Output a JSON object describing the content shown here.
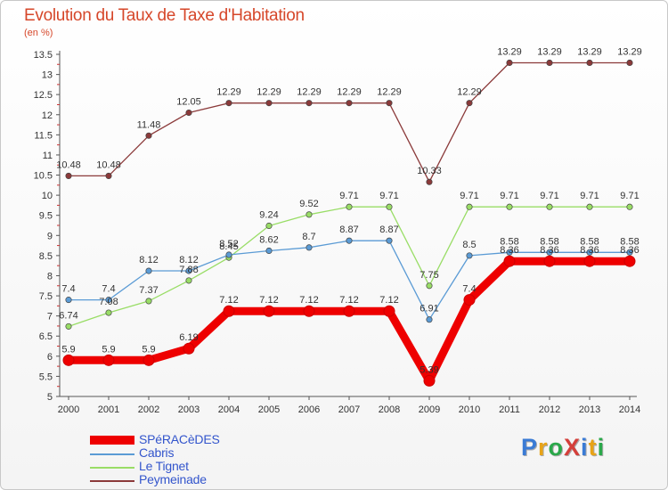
{
  "header": {
    "title": "Evolution du Taux de Taxe d'Habitation",
    "unit": "(en %)"
  },
  "logo": {
    "text": "ProXiti",
    "colors": [
      "#3a7bd5",
      "#e8a317",
      "#2aa84a",
      "#d43f3a",
      "#3a7bd5",
      "#e8a317",
      "#2aa84a"
    ]
  },
  "chart_data": {
    "type": "line",
    "x": [
      2000,
      2001,
      2002,
      2003,
      2004,
      2005,
      2006,
      2007,
      2008,
      2009,
      2010,
      2011,
      2012,
      2013,
      2014
    ],
    "ylim": [
      5,
      13.5
    ],
    "yticks": [
      5,
      5.5,
      6,
      6.5,
      7,
      7.5,
      8,
      8.5,
      9,
      9.5,
      10,
      10.5,
      11,
      11.5,
      12,
      12.5,
      13,
      13.5
    ],
    "grid": false,
    "legend": "bottom-left",
    "series": [
      {
        "name": "SPéRACèDES",
        "color": "#ee0000",
        "emphasis": true,
        "values": [
          5.9,
          5.9,
          5.9,
          6.19,
          7.12,
          7.12,
          7.12,
          7.12,
          7.12,
          5.39,
          7.4,
          8.36,
          8.36,
          8.36,
          8.36
        ],
        "labels": [
          "5.9",
          "5.9",
          "5.9",
          "6.19",
          "7.12",
          "7.12",
          "7.12",
          "7.12",
          "7.12",
          "5.39",
          "7.4",
          "8.36",
          "8.36",
          "8.36",
          "8.36"
        ]
      },
      {
        "name": "Cabris",
        "color": "#5b9bd5",
        "emphasis": false,
        "values": [
          7.4,
          7.4,
          8.12,
          8.12,
          8.52,
          8.62,
          8.7,
          8.87,
          8.87,
          6.91,
          8.5,
          8.58,
          8.58,
          8.58,
          8.58
        ],
        "labels": [
          "7.4",
          "7.4",
          "8.12",
          "8.12",
          "8.52",
          "8.62",
          "8.7",
          "8.87",
          "8.87",
          "6.91",
          "8.5",
          "8.58",
          "8.58",
          "8.58",
          "8.58"
        ]
      },
      {
        "name": "Le Tignet",
        "color": "#99dd66",
        "emphasis": false,
        "values": [
          6.74,
          7.08,
          7.37,
          7.88,
          8.45,
          9.24,
          9.52,
          9.71,
          9.71,
          7.75,
          9.71,
          9.71,
          9.71,
          9.71,
          9.71
        ],
        "labels": [
          "6.74",
          "7.08",
          "7.37",
          "7.88",
          "8.45",
          "9.24",
          "9.52",
          "9.71",
          "9.71",
          "7.75",
          "9.71",
          "9.71",
          "9.71",
          "9.71",
          "9.71"
        ]
      },
      {
        "name": "Peymeinade",
        "color": "#8b3a3a",
        "emphasis": false,
        "values": [
          10.48,
          10.48,
          11.48,
          12.05,
          12.29,
          12.29,
          12.29,
          12.29,
          12.29,
          10.33,
          12.29,
          13.29,
          13.29,
          13.29,
          13.29
        ],
        "labels": [
          "10.48",
          "10.48",
          "11.48",
          "12.05",
          "12.29",
          "12.29",
          "12.29",
          "12.29",
          "12.29",
          "10.33",
          "12.29",
          "13.29",
          "13.29",
          "13.29",
          "13.29"
        ]
      }
    ]
  }
}
